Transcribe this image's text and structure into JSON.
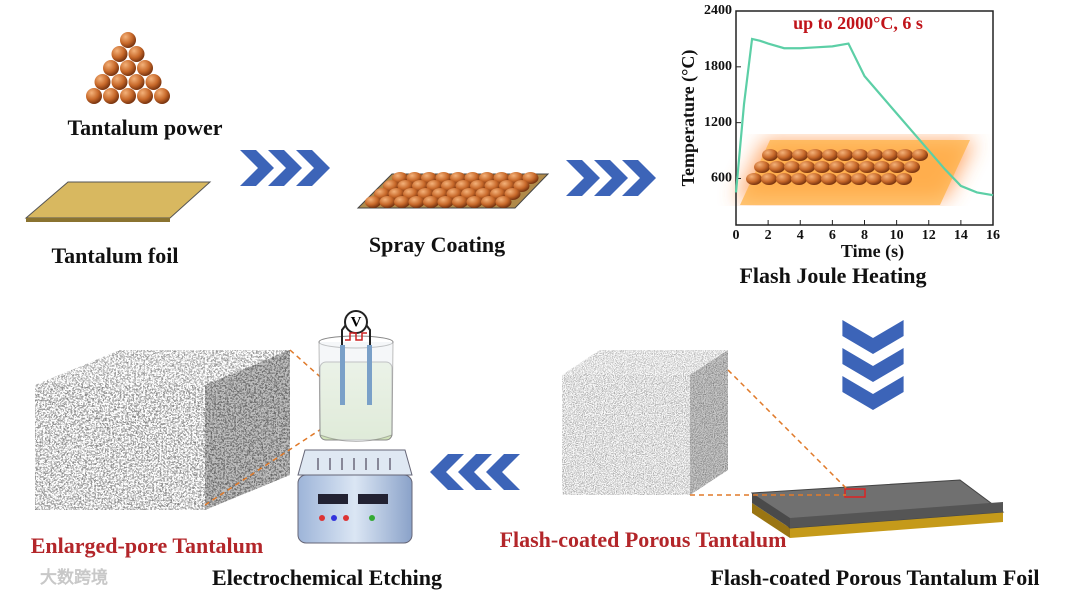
{
  "labels": {
    "tantalum_powder": "Tantalum power",
    "tantalum_foil": "Tantalum foil",
    "spray_coating": "Spray Coating",
    "flash_joule_heating": "Flash Joule Heating",
    "foil_product": "Flash-coated Porous Tantalum Foil",
    "porous_tantalum": "Flash-coated Porous Tantalum",
    "etching": "Electrochemical Etching",
    "enlarged": "Enlarged-pore Tantalum",
    "voltage": "V",
    "watermark": "大数跨境"
  },
  "chart_data": {
    "type": "line",
    "ylabel": "Temperature (°C)",
    "xlabel": "Time (s)",
    "annotation": "up to 2000°C, 6 s",
    "x": [
      0,
      0.5,
      1,
      1.5,
      2,
      3,
      4,
      5,
      6,
      7,
      8,
      9,
      10,
      11,
      12,
      13,
      14,
      15,
      16
    ],
    "series": [
      {
        "name": "Temperature",
        "color": "#5ccfa6",
        "values": [
          450,
          1400,
          2100,
          2080,
          2050,
          2000,
          2000,
          2010,
          2020,
          2050,
          1700,
          1500,
          1300,
          1100,
          900,
          700,
          520,
          450,
          420
        ]
      }
    ],
    "xlim": [
      0,
      16
    ],
    "ylim": [
      100,
      2400
    ],
    "xticks": [
      0,
      2,
      4,
      6,
      8,
      10,
      12,
      14,
      16
    ],
    "yticks": [
      600,
      1200,
      1800,
      2400
    ]
  }
}
